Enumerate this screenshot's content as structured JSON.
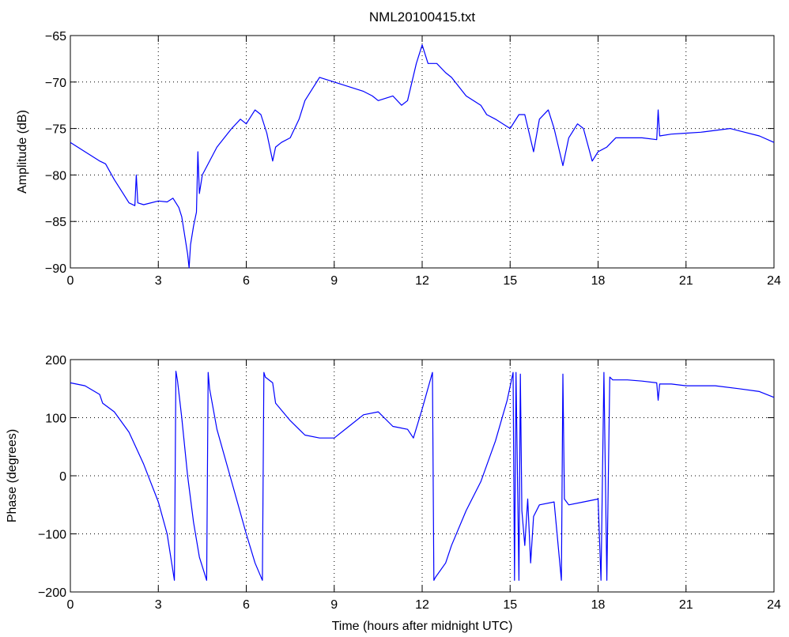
{
  "figure": {
    "title": "NML20100415.txt"
  },
  "chart_data": [
    {
      "type": "line",
      "title": "NML20100415.txt",
      "xlabel": "",
      "ylabel": "Amplitude (dB)",
      "xlim": [
        0,
        24
      ],
      "ylim": [
        -90,
        -65
      ],
      "xticks": [
        0,
        3,
        6,
        9,
        12,
        15,
        18,
        21,
        24
      ],
      "yticks": [
        -90,
        -85,
        -80,
        -75,
        -70,
        -65
      ],
      "xtick_labels": [
        "0",
        "3",
        "6",
        "9",
        "12",
        "15",
        "18",
        "21",
        "24"
      ],
      "ytick_labels": [
        "−90",
        "−85",
        "−80",
        "−75",
        "−70",
        "−65"
      ],
      "grid": true,
      "color": "#0000ff",
      "series": [
        {
          "x": [
            0,
            0.5,
            1.0,
            1.2,
            1.5,
            1.8,
            2.0,
            2.2,
            2.25,
            2.3,
            2.5,
            3.0,
            3.3,
            3.5,
            3.7,
            3.8,
            3.9,
            4.0,
            4.05,
            4.1,
            4.2,
            4.3,
            4.35,
            4.4,
            4.5,
            5.0,
            5.5,
            5.8,
            6.0,
            6.3,
            6.5,
            6.7,
            6.8,
            6.9,
            7.0,
            7.2,
            7.5,
            7.8,
            8.0,
            8.3,
            8.5,
            9.0,
            9.5,
            10.0,
            10.3,
            10.5,
            11.0,
            11.3,
            11.5,
            11.8,
            12.0,
            12.2,
            12.5,
            12.8,
            13.0,
            13.5,
            14.0,
            14.2,
            14.5,
            15.0,
            15.3,
            15.5,
            15.8,
            16.0,
            16.3,
            16.5,
            16.8,
            17.0,
            17.3,
            17.5,
            17.8,
            18.0,
            18.3,
            18.6,
            19.0,
            19.5,
            20.0,
            20.05,
            20.1,
            20.5,
            21.0,
            21.5,
            22.0,
            22.5,
            23.0,
            23.5,
            24.0
          ],
          "y": [
            -76.5,
            -77.5,
            -78.5,
            -78.8,
            -80.5,
            -82.0,
            -83.0,
            -83.3,
            -80.0,
            -83.0,
            -83.2,
            -82.8,
            -82.9,
            -82.5,
            -83.5,
            -84.5,
            -86.5,
            -88.5,
            -90.0,
            -87.5,
            -85.5,
            -84.0,
            -77.5,
            -82.0,
            -80.0,
            -77.0,
            -75.0,
            -74.0,
            -74.5,
            -73.0,
            -73.5,
            -75.5,
            -77.0,
            -78.5,
            -77.0,
            -76.5,
            -76.0,
            -74.0,
            -72.0,
            -70.5,
            -69.5,
            -70.0,
            -70.5,
            -71.0,
            -71.5,
            -72.0,
            -71.5,
            -72.5,
            -72.0,
            -68.0,
            -66.0,
            -68.0,
            -68.0,
            -69.0,
            -69.5,
            -71.5,
            -72.5,
            -73.5,
            -74.0,
            -75.0,
            -73.5,
            -73.5,
            -77.5,
            -74.0,
            -73.0,
            -75.0,
            -79.0,
            -76.0,
            -74.5,
            -75.0,
            -78.5,
            -77.5,
            -77.0,
            -76.0,
            -76.0,
            -76.0,
            -76.2,
            -73.0,
            -75.8,
            -75.6,
            -75.5,
            -75.4,
            -75.2,
            -75.0,
            -75.4,
            -75.8,
            -76.5
          ]
        }
      ]
    },
    {
      "type": "line",
      "xlabel": "Time (hours after midnight UTC)",
      "ylabel": "Phase (degrees)",
      "xlim": [
        0,
        24
      ],
      "ylim": [
        -200,
        200
      ],
      "xticks": [
        0,
        3,
        6,
        9,
        12,
        15,
        18,
        21,
        24
      ],
      "yticks": [
        -200,
        -100,
        0,
        100,
        200
      ],
      "xtick_labels": [
        "0",
        "3",
        "6",
        "9",
        "12",
        "15",
        "18",
        "21",
        "24"
      ],
      "ytick_labels": [
        "−200",
        "−100",
        "0",
        "100",
        "200"
      ],
      "grid": true,
      "color": "#0000ff",
      "series": [
        {
          "x": [
            0,
            0.5,
            1.0,
            1.1,
            1.5,
            2.0,
            2.5,
            3.0,
            3.3,
            3.55,
            3.6,
            3.65,
            3.8,
            4.0,
            4.2,
            4.4,
            4.65,
            4.7,
            4.75,
            5.0,
            5.5,
            6.0,
            6.3,
            6.55,
            6.6,
            6.65,
            6.9,
            7.0,
            7.5,
            8.0,
            8.5,
            9.0,
            9.5,
            10.0,
            10.5,
            11.0,
            11.5,
            11.7,
            12.0,
            12.35,
            12.4,
            12.45,
            12.8,
            13.0,
            13.5,
            14.0,
            14.5,
            14.9,
            15.1,
            15.15,
            15.2,
            15.3,
            15.35,
            15.4,
            15.5,
            15.6,
            15.7,
            15.8,
            16.0,
            16.5,
            16.75,
            16.8,
            16.85,
            17.0,
            17.5,
            18.0,
            18.1,
            18.2,
            18.3,
            18.4,
            18.5,
            19.0,
            19.5,
            20.0,
            20.05,
            20.1,
            20.5,
            21.0,
            22.0,
            22.8,
            23.5,
            24.0
          ],
          "y": [
            160,
            155,
            140,
            125,
            110,
            75,
            20,
            -45,
            -100,
            -180,
            180,
            165,
            100,
            0,
            -80,
            -140,
            -180,
            178,
            150,
            80,
            -10,
            -100,
            -150,
            -180,
            178,
            170,
            160,
            125,
            95,
            70,
            65,
            65,
            85,
            105,
            110,
            85,
            80,
            65,
            115,
            178,
            -180,
            -175,
            -150,
            -120,
            -60,
            -10,
            60,
            130,
            178,
            -180,
            178,
            -180,
            175,
            -60,
            -120,
            -40,
            -150,
            -70,
            -50,
            -45,
            -180,
            175,
            -40,
            -50,
            -45,
            -40,
            -180,
            178,
            -180,
            170,
            165,
            165,
            163,
            160,
            130,
            158,
            158,
            155,
            155,
            150,
            145,
            135
          ]
        }
      ]
    }
  ]
}
